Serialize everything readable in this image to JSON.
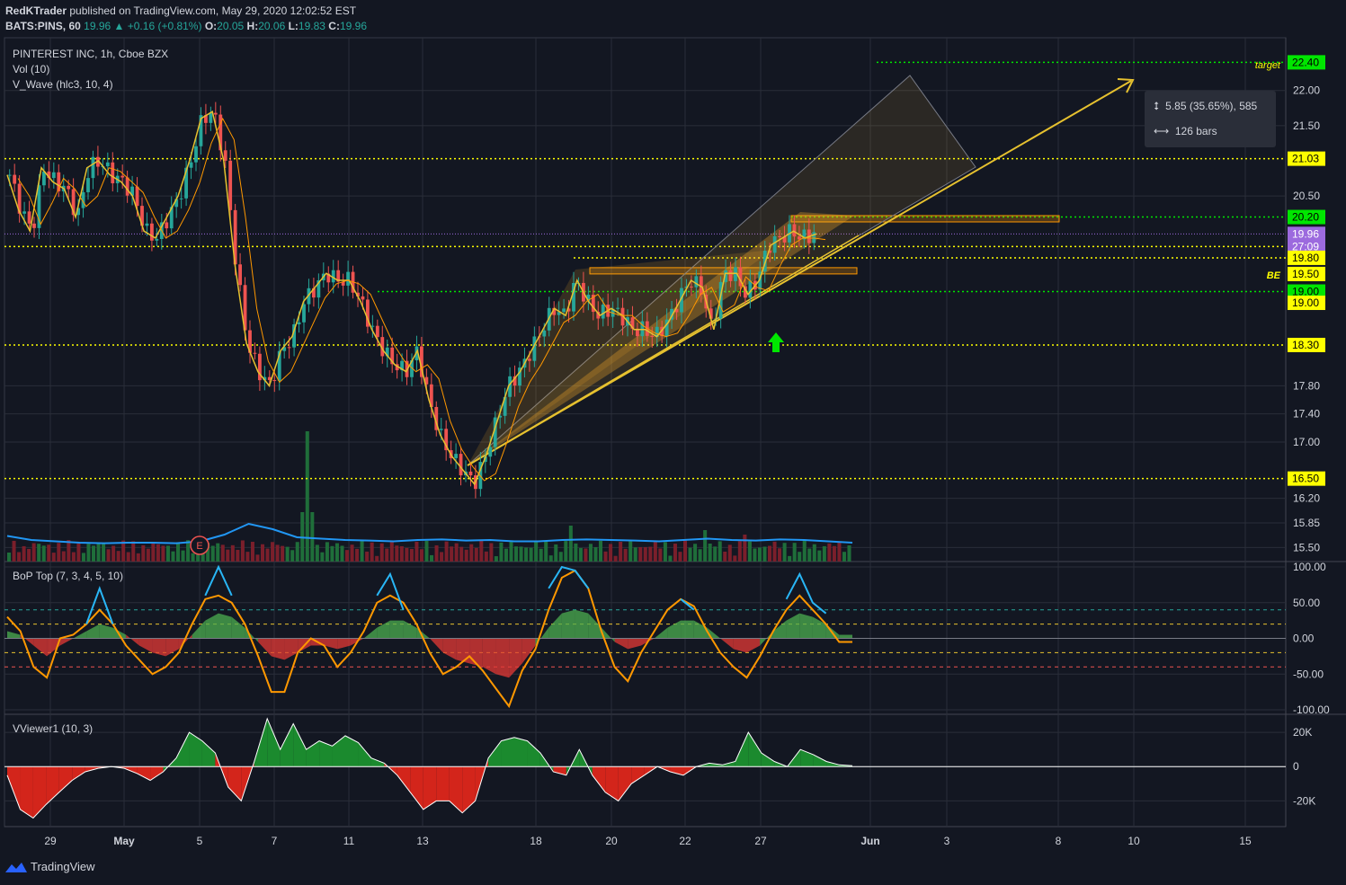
{
  "header": {
    "author": "RedKTrader",
    "published_text": "published on TradingView.com, May 29, 2020 12:02:52 EST",
    "symbol": "BATS:PINS, 60",
    "last": "19.96",
    "change": "+0.16 (+0.81%)",
    "o_label": "O:",
    "o": "20.05",
    "h_label": "H:",
    "h": "20.06",
    "l_label": "L:",
    "l": "19.83",
    "c_label": "C:",
    "c": "19.96"
  },
  "legend": {
    "title": "PINTEREST INC, 1h, Cboe BZX",
    "vol": "Vol (10)",
    "vwave": "V_Wave (hlc3, 10, 4)",
    "bop": "BoP Top (7, 3, 4, 5, 10)",
    "vviewer": "VViewer1 (10, 3)"
  },
  "annotations": {
    "target": "target",
    "be": "BE",
    "earnings": "E",
    "measure_price": "5.85 (35.65%), 585",
    "measure_bars": "126 bars"
  },
  "footer": {
    "brand": "TradingView"
  },
  "colors": {
    "bg": "#131722",
    "up": "#26a69a",
    "down": "#ef5350",
    "yellow": "#ffff00",
    "green": "#00e600",
    "grid": "#2a2e39",
    "text": "#d1d4dc",
    "current": "#9c6ade"
  },
  "chart_data": [
    {
      "type": "candlestick",
      "title": "PINTEREST INC, 1h, Cboe BZX",
      "x_ticks": [
        "29",
        "May",
        "5",
        "7",
        "11",
        "13",
        "18",
        "20",
        "22",
        "27",
        "Jun",
        "3",
        "8",
        "10",
        "15"
      ],
      "y_ticks": [
        "22.00",
        "21.50",
        "20.50",
        "17.80",
        "17.40",
        "17.00",
        "16.20",
        "15.85",
        "15.50"
      ],
      "ylim": [
        15.3,
        22.75
      ],
      "price_labels": [
        {
          "value": 22.4,
          "label": "22.40",
          "style": "green"
        },
        {
          "value": 21.03,
          "label": "21.03",
          "style": "yellow"
        },
        {
          "value": 20.2,
          "label": "20.20",
          "style": "green"
        },
        {
          "value": 19.96,
          "label": "19.96",
          "style": "current"
        },
        {
          "value": 19.78,
          "label": "27:09",
          "style": "current"
        },
        {
          "value": 19.62,
          "label": "19.80",
          "style": "yellow"
        },
        {
          "value": 19.39,
          "label": "19.50",
          "style": "yellow"
        },
        {
          "value": 19.14,
          "label": "19.00",
          "style": "green"
        },
        {
          "value": 18.98,
          "label": "19.00",
          "style": "yellow"
        },
        {
          "value": 18.38,
          "label": "18.30",
          "style": "yellow"
        },
        {
          "value": 16.48,
          "label": "16.50",
          "style": "yellow"
        }
      ],
      "close_path": [
        20.8,
        20.3,
        20.0,
        20.9,
        20.7,
        20.6,
        20.2,
        20.9,
        21.0,
        20.8,
        20.7,
        20.5,
        20.0,
        19.9,
        20.2,
        20.5,
        21.0,
        21.6,
        21.7,
        21.0,
        19.5,
        18.4,
        18.0,
        17.8,
        18.3,
        18.5,
        19.0,
        19.2,
        19.4,
        19.3,
        19.3,
        19.0,
        18.6,
        18.3,
        18.1,
        18.0,
        18.3,
        17.6,
        17.1,
        16.8,
        16.6,
        16.4,
        16.8,
        17.3,
        17.8,
        18.0,
        18.3,
        18.6,
        18.9,
        18.8,
        19.3,
        19.0,
        18.8,
        18.9,
        18.8,
        18.6,
        18.6,
        18.5,
        18.7,
        19.0,
        19.3,
        19.2,
        18.6,
        19.4,
        19.4,
        19.1,
        19.3,
        19.8,
        19.9,
        20.0,
        19.9,
        19.96
      ],
      "volume_avg_path": [
        0.55,
        0.4,
        0.35,
        0.3,
        0.28,
        0.3,
        0.3,
        0.28,
        0.35,
        0.6,
        1.0,
        0.8,
        0.5,
        0.45,
        0.4,
        0.38,
        0.35,
        0.4,
        0.42,
        0.38,
        0.4,
        0.35,
        0.35,
        0.4,
        0.42,
        0.4,
        0.38,
        0.35,
        0.4,
        0.45,
        0.4,
        0.38,
        0.42,
        0.4,
        0.35,
        0.3
      ]
    },
    {
      "type": "line",
      "title": "BoP Top (7, 3, 4, 5, 10)",
      "y_ticks": [
        "100.00",
        "50.00",
        "0.00",
        "-50.00",
        "-100.00"
      ],
      "ylim": [
        -100,
        100
      ],
      "levels": [
        40,
        20,
        -20,
        -40
      ],
      "fast": [
        30,
        10,
        -40,
        -55,
        0,
        5,
        20,
        40,
        20,
        -10,
        -30,
        -50,
        -40,
        -20,
        20,
        55,
        60,
        50,
        20,
        -25,
        -75,
        -75,
        -20,
        0,
        -10,
        -40,
        -20,
        10,
        50,
        60,
        50,
        20,
        -20,
        -50,
        -40,
        -25,
        -45,
        -70,
        -95,
        -45,
        -15,
        40,
        85,
        95,
        70,
        10,
        -40,
        -60,
        -20,
        10,
        40,
        55,
        45,
        10,
        -20,
        -40,
        -55,
        -25,
        10,
        40,
        60,
        40,
        20,
        -5,
        -5
      ],
      "slow": [
        10,
        5,
        -10,
        -25,
        -10,
        0,
        10,
        20,
        15,
        5,
        -10,
        -20,
        -25,
        -15,
        5,
        25,
        35,
        30,
        15,
        -5,
        -25,
        -30,
        -20,
        -10,
        -10,
        -15,
        -10,
        0,
        15,
        25,
        25,
        15,
        0,
        -20,
        -30,
        -35,
        -40,
        -50,
        -55,
        -35,
        -10,
        15,
        35,
        40,
        35,
        15,
        -5,
        -15,
        -10,
        0,
        15,
        25,
        25,
        15,
        0,
        -15,
        -20,
        -10,
        10,
        25,
        35,
        30,
        20,
        5,
        5
      ],
      "blue": [
        null,
        null,
        null,
        null,
        null,
        null,
        20,
        70,
        20,
        null,
        null,
        null,
        null,
        null,
        null,
        60,
        100,
        60,
        null,
        null,
        null,
        null,
        null,
        null,
        null,
        null,
        null,
        null,
        60,
        90,
        40,
        null,
        null,
        null,
        null,
        null,
        null,
        null,
        null,
        null,
        null,
        70,
        100,
        95,
        70,
        null,
        null,
        null,
        null,
        null,
        null,
        55,
        40,
        null,
        null,
        null,
        null,
        null,
        null,
        55,
        90,
        50,
        35,
        null,
        null
      ]
    },
    {
      "type": "area",
      "title": "VViewer1 (10, 3)",
      "y_ticks": [
        "20K",
        "0",
        "-20K"
      ],
      "ylim": [
        -35000,
        30000
      ],
      "values": [
        -5000,
        -25000,
        -30000,
        -22000,
        -15000,
        -8000,
        -3000,
        -1000,
        0,
        -1000,
        -4000,
        -8000,
        -3000,
        5000,
        20000,
        15000,
        8000,
        -12000,
        -20000,
        3000,
        28000,
        10000,
        25000,
        10000,
        15000,
        12000,
        18000,
        14000,
        5000,
        2000,
        -5000,
        -15000,
        -25000,
        -20000,
        -20000,
        -27000,
        -20000,
        5000,
        15000,
        17000,
        15000,
        8000,
        -3000,
        -5000,
        10000,
        -5000,
        -15000,
        -20000,
        -10000,
        -5000,
        0,
        -3000,
        -5000,
        0,
        2000,
        1000,
        3000,
        20000,
        8000,
        3000,
        0,
        10000,
        7000,
        3000,
        1000,
        500
      ]
    }
  ]
}
